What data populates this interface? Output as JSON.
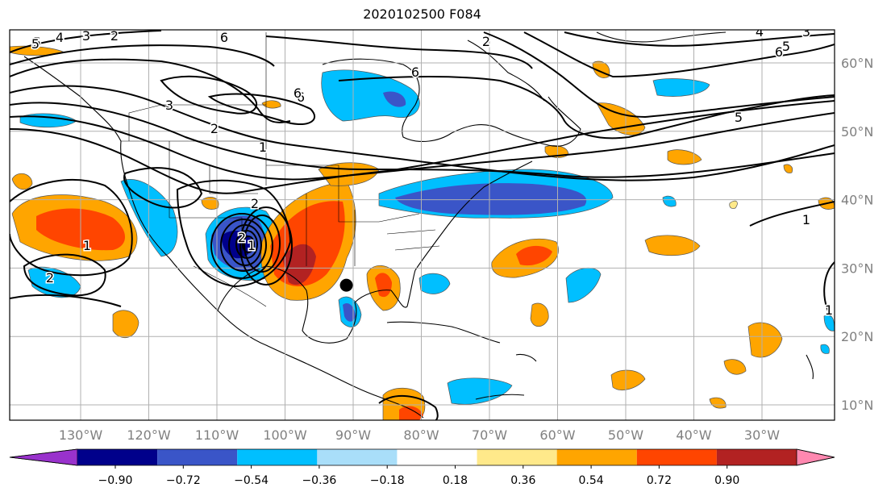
{
  "title": "2020102500 F084",
  "lon_labels": [
    {
      "text": "130°W",
      "lon": -130
    },
    {
      "text": "120°W",
      "lon": -120
    },
    {
      "text": "110°W",
      "lon": -110
    },
    {
      "text": "100°W",
      "lon": -100
    },
    {
      "text": "90°W",
      "lon": -90
    },
    {
      "text": "80°W",
      "lon": -80
    },
    {
      "text": "70°W",
      "lon": -70
    },
    {
      "text": "60°W",
      "lon": -60
    },
    {
      "text": "50°W",
      "lon": -50
    },
    {
      "text": "40°W",
      "lon": -40
    },
    {
      "text": "30°W",
      "lon": -30
    }
  ],
  "lat_labels": [
    {
      "text": "60°N",
      "lat": 60
    },
    {
      "text": "50°N",
      "lat": 50
    },
    {
      "text": "40°N",
      "lat": 40
    },
    {
      "text": "30°N",
      "lat": 30
    },
    {
      "text": "20°N",
      "lat": 20
    },
    {
      "text": "10°N",
      "lat": 10
    }
  ],
  "colorbar": {
    "ticks": [
      "−0.90",
      "−0.72",
      "−0.54",
      "−0.36",
      "−0.18",
      "0.18",
      "0.36",
      "0.54",
      "0.72",
      "0.90"
    ],
    "colors": [
      "#9932cc",
      "#00008b",
      "#3a55c8",
      "#00bfff",
      "#a9def9",
      "#ffffff",
      "#ffe98a",
      "#ffa500",
      "#ff4500",
      "#b22222",
      "#ff88b0"
    ]
  },
  "contour_labels": [
    "5",
    "4",
    "3",
    "2",
    "6",
    "6",
    "3",
    "2",
    "1",
    "6",
    "5",
    "4",
    "3",
    "6",
    "5",
    "4",
    "3",
    "5",
    "1",
    "2",
    "1",
    "2",
    "1",
    "2",
    "2",
    "6",
    "1"
  ],
  "storm_marker": {
    "lon": -91,
    "lat": 27.5
  },
  "colors": {
    "land_outline": "#000000",
    "grid": "#b0b0b0",
    "contour": "#000000"
  }
}
